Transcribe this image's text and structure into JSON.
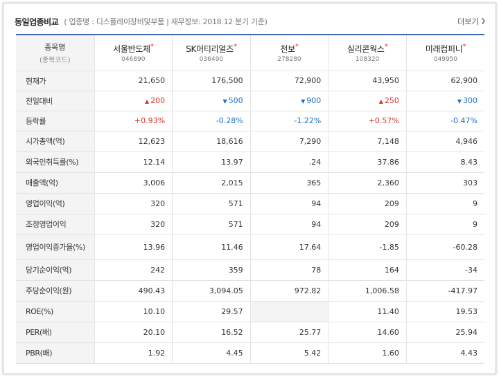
{
  "header": {
    "title": "동일업종비교",
    "subtitle": "( 업종명 : 디스플레이장비및부품 | 재무정보: 2018.12 분기 기준)",
    "more_label": "더보기"
  },
  "table": {
    "corner_label": "종목명",
    "corner_sub": "(종목코드)",
    "companies": [
      {
        "name": "서울반도체",
        "code": "046890"
      },
      {
        "name": "SK머티리얼즈",
        "code": "036490"
      },
      {
        "name": "천보",
        "code": "278280"
      },
      {
        "name": "실리콘웍스",
        "code": "108320"
      },
      {
        "name": "미래컴퍼니",
        "code": "049950"
      }
    ],
    "star": "*",
    "rows": [
      {
        "label": "현재가",
        "values": [
          "21,650",
          "176,500",
          "72,900",
          "43,950",
          "62,900"
        ]
      },
      {
        "label": "전일대비",
        "values": [
          "200",
          "500",
          "900",
          "250",
          "300"
        ],
        "dirs": [
          "up",
          "down",
          "down",
          "up",
          "down"
        ],
        "up_icon": "▲",
        "down_icon": "▼"
      },
      {
        "label": "등락률",
        "values": [
          "+0.93%",
          "-0.28%",
          "-1.22%",
          "+0.57%",
          "-0.47%"
        ],
        "dirs": [
          "up",
          "down",
          "down",
          "up",
          "down"
        ]
      },
      {
        "label": "시가총액(억)",
        "values": [
          "12,623",
          "18,616",
          "7,290",
          "7,148",
          "4,946"
        ]
      },
      {
        "label": "외국인취득률(%)",
        "values": [
          "12.14",
          "13.97",
          ".24",
          "37.86",
          "8.43"
        ]
      },
      {
        "label": "매출액(억)",
        "values": [
          "3,006",
          "2,015",
          "365",
          "2,360",
          "303"
        ]
      },
      {
        "label": "영업이익(억)",
        "values": [
          "320",
          "571",
          "94",
          "209",
          "9"
        ]
      },
      {
        "label": "조정영업이익",
        "values": [
          "320",
          "571",
          "94",
          "209",
          "9"
        ]
      },
      {
        "label": "영업이익증가율(%)",
        "values": [
          "13.96",
          "11.46",
          "17.64",
          "-1.85",
          "-60.28"
        ]
      },
      {
        "label": "당기순이익(억)",
        "values": [
          "242",
          "359",
          "78",
          "164",
          "-34"
        ]
      },
      {
        "label": "주당순이익(원)",
        "values": [
          "490.43",
          "3,094.05",
          "972.82",
          "1,006.58",
          "-417.97"
        ]
      },
      {
        "label": "ROE(%)",
        "values": [
          "10.10",
          "29.57",
          "",
          "11.40",
          "19.53"
        ]
      },
      {
        "label": "PER(배)",
        "values": [
          "20.10",
          "16.52",
          "25.77",
          "14.60",
          "25.94"
        ]
      },
      {
        "label": "PBR(배)",
        "values": [
          "1.92",
          "4.45",
          "5.42",
          "1.60",
          "4.43"
        ]
      }
    ]
  },
  "colors": {
    "up": "#d9352b",
    "down": "#1c6ec6",
    "accent_border": "#3e68b0"
  }
}
